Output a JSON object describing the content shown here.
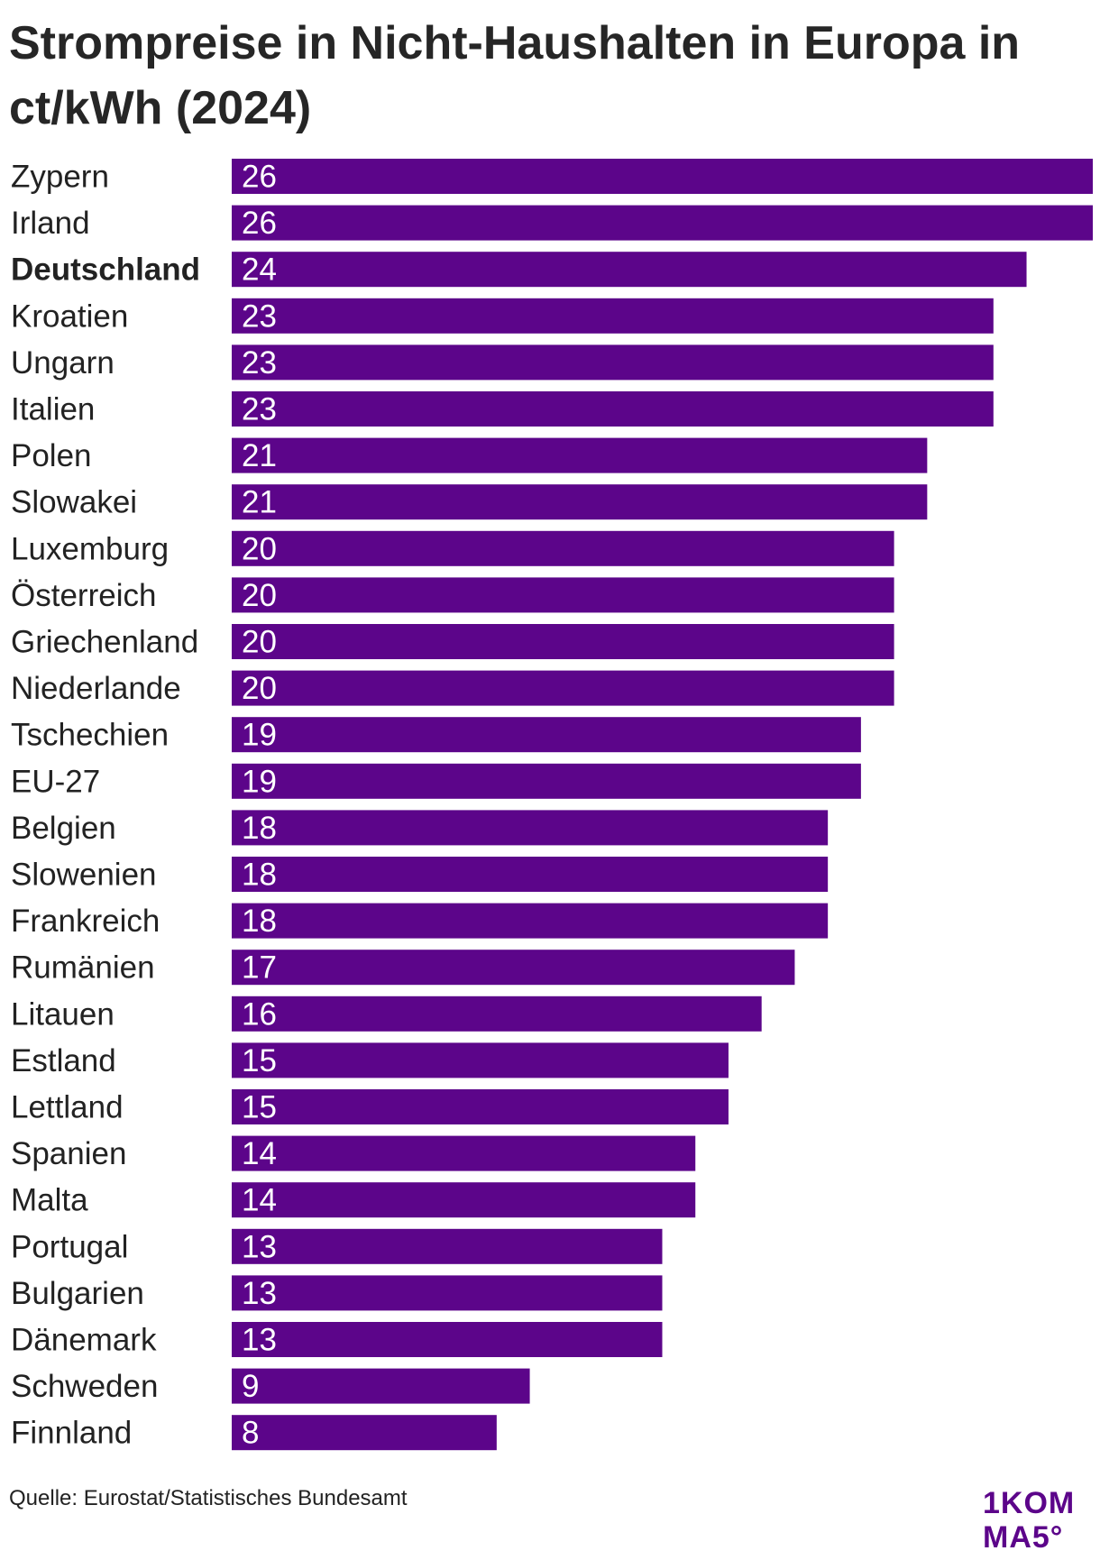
{
  "chart_data": {
    "type": "bar",
    "orientation": "horizontal",
    "title": "Strompreise in Nicht-Haushalten in Europa in ct/kWh (2024)",
    "categories": [
      "Zypern",
      "Irland",
      "Deutschland",
      "Kroatien",
      "Ungarn",
      "Italien",
      "Polen",
      "Slowakei",
      "Luxemburg",
      "Österreich",
      "Griechenland",
      "Niederlande",
      "Tschechien",
      "EU-27",
      "Belgien",
      "Slowenien",
      "Frankreich",
      "Rumänien",
      "Litauen",
      "Estland",
      "Lettland",
      "Spanien",
      "Malta",
      "Portugal",
      "Bulgarien",
      "Dänemark",
      "Schweden",
      "Finnland"
    ],
    "values": [
      26,
      26,
      24,
      23,
      23,
      23,
      21,
      21,
      20,
      20,
      20,
      20,
      19,
      19,
      18,
      18,
      18,
      17,
      16,
      15,
      15,
      14,
      14,
      13,
      13,
      13,
      9,
      8
    ],
    "highlight_category": "Deutschland",
    "bar_color": "#5c058a",
    "xlim": [
      0,
      26
    ],
    "grid": false,
    "legend": false
  },
  "source": "Quelle: Eurostat/Statistisches Bundesamt",
  "logo": {
    "line1": "1KOM",
    "line2": "MA5°",
    "color": "#5c058a"
  }
}
